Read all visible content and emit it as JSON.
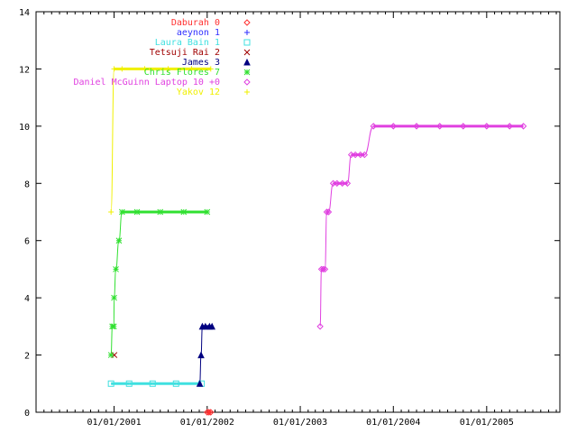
{
  "chart_data": {
    "type": "line",
    "title": "",
    "xlabel": "",
    "ylabel": "",
    "x_type": "date",
    "xlim": [
      "2000-03-01",
      "2005-10-15"
    ],
    "ylim": [
      0,
      14
    ],
    "x_ticks": [
      "2001-01-01",
      "2002-01-01",
      "2003-01-01",
      "2004-01-01",
      "2005-01-01"
    ],
    "x_tick_labels": [
      "01/01/2001",
      "01/01/2002",
      "01/01/2003",
      "01/01/2004",
      "01/01/2005"
    ],
    "y_ticks": [
      0,
      2,
      4,
      6,
      8,
      10,
      12,
      14
    ],
    "y_tick_labels": [
      "0",
      "2",
      "4",
      "6",
      "8",
      "10",
      "12",
      "14"
    ],
    "grid": false,
    "legend_position": "top-inside",
    "series": [
      {
        "name": "Daburah 0",
        "color": "#ff3030",
        "marker": "diamond",
        "points": [
          [
            "2002-01-01",
            0
          ],
          [
            "2002-01-08",
            0
          ],
          [
            "2002-01-15",
            0
          ]
        ]
      },
      {
        "name": "aeynon 1",
        "color": "#3030ff",
        "marker": "plus",
        "points": []
      },
      {
        "name": "Laura Bain 1",
        "color": "#40e0e0",
        "marker": "box",
        "points": [
          [
            "2000-12-20",
            1
          ],
          [
            "2001-03-01",
            1
          ],
          [
            "2001-06-01",
            1
          ],
          [
            "2001-09-01",
            1
          ],
          [
            "2001-12-10",
            1
          ]
        ]
      },
      {
        "name": "Tetsuji Rai 2",
        "color": "#a00000",
        "marker": "cross",
        "points": [
          [
            "2001-01-02",
            2
          ]
        ]
      },
      {
        "name": "James 3",
        "color": "#000080",
        "marker": "triangle",
        "points": [
          [
            "2001-12-03",
            1
          ],
          [
            "2001-12-08",
            2
          ],
          [
            "2001-12-13",
            3
          ],
          [
            "2001-12-25",
            3
          ],
          [
            "2002-01-10",
            3
          ],
          [
            "2002-01-20",
            3
          ]
        ]
      },
      {
        "name": "Chris Flores 7",
        "color": "#30e030",
        "marker": "star",
        "points": [
          [
            "2000-12-20",
            2
          ],
          [
            "2000-12-25",
            3
          ],
          [
            "2000-12-31",
            3
          ],
          [
            "2001-01-01",
            4
          ],
          [
            "2001-01-08",
            5
          ],
          [
            "2001-01-20",
            6
          ],
          [
            "2001-02-01",
            7
          ],
          [
            "2001-04-01",
            7
          ],
          [
            "2001-07-01",
            7
          ],
          [
            "2001-10-01",
            7
          ],
          [
            "2002-01-01",
            7
          ]
        ]
      },
      {
        "name": "Daniel McGuinn   Laptop 10 +0",
        "color": "#e040e0",
        "marker": "diamond",
        "points": [
          [
            "2003-03-20",
            3
          ],
          [
            "2003-03-25",
            5
          ],
          [
            "2003-04-01",
            5
          ],
          [
            "2003-04-08",
            5
          ],
          [
            "2003-04-15",
            7
          ],
          [
            "2003-04-22",
            7
          ],
          [
            "2003-05-10",
            8
          ],
          [
            "2003-05-25",
            8
          ],
          [
            "2003-06-15",
            8
          ],
          [
            "2003-07-05",
            8
          ],
          [
            "2003-07-20",
            9
          ],
          [
            "2003-08-05",
            9
          ],
          [
            "2003-08-25",
            9
          ],
          [
            "2003-09-10",
            9
          ],
          [
            "2003-10-15",
            10
          ],
          [
            "2004-01-01",
            10
          ],
          [
            "2004-04-01",
            10
          ],
          [
            "2004-07-01",
            10
          ],
          [
            "2004-10-01",
            10
          ],
          [
            "2005-01-01",
            10
          ],
          [
            "2005-04-01",
            10
          ],
          [
            "2005-05-25",
            10
          ]
        ]
      },
      {
        "name": "Yakov 12",
        "color": "#f0f000",
        "marker": "plus",
        "points": [
          [
            "2000-12-20",
            7
          ],
          [
            "2001-01-01",
            12
          ],
          [
            "2001-02-01",
            12
          ],
          [
            "2001-05-01",
            12
          ],
          [
            "2001-08-01",
            12
          ],
          [
            "2001-11-01",
            12
          ],
          [
            "2002-01-15",
            12
          ]
        ]
      }
    ]
  }
}
